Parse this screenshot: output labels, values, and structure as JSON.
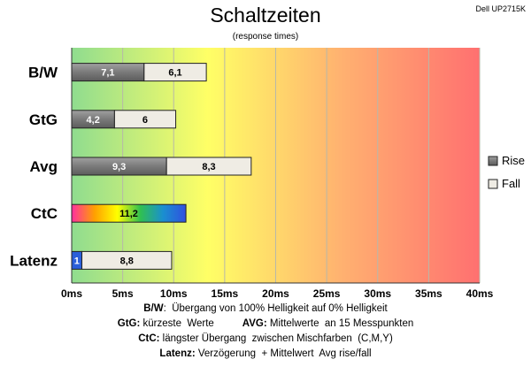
{
  "header": {
    "title": "Schaltzeiten",
    "subtitle": "(response times)",
    "monitor": "Dell UP2715K"
  },
  "chart_data": {
    "type": "bar",
    "orientation": "horizontal",
    "stacked": true,
    "categories": [
      "B/W",
      "GtG",
      "Avg",
      "CtC",
      "Latenz"
    ],
    "series": [
      {
        "name": "Rise",
        "values": [
          7.1,
          4.2,
          9.3,
          null,
          1
        ],
        "color": "#7f7f7f"
      },
      {
        "name": "Fall",
        "values": [
          6.1,
          6,
          8.3,
          null,
          8.8
        ],
        "color": "#efece4"
      }
    ],
    "single_values": {
      "CtC": 11.2
    },
    "data_labels": {
      "Rise": [
        "7,1",
        "4,2",
        "9,3",
        "",
        "1"
      ],
      "Fall": [
        "6,1",
        "6",
        "8,3",
        "",
        "8,8"
      ],
      "CtC": "11,2"
    },
    "x_ticks": [
      "0ms",
      "5ms",
      "10ms",
      "15ms",
      "20ms",
      "25ms",
      "30ms",
      "35ms",
      "40ms"
    ],
    "xlim": [
      0,
      40
    ],
    "grid": true,
    "legend_position": "right",
    "background_gradient": [
      "#8fdc8f",
      "#ffff66",
      "#ffb070",
      "#ff7070"
    ],
    "ctc_gradient": [
      "#ff2fa0",
      "#ffa000",
      "#ffff00",
      "#30c050",
      "#1a8fd0",
      "#3050e0"
    ],
    "latenz_rise_color": "#2b5fd9"
  },
  "notes": [
    {
      "parts": [
        {
          "b": "B/W",
          "t": ":  Übergang von 100% Helligkeit auf 0% Helligkeit"
        }
      ]
    },
    {
      "parts": [
        {
          "b": "GtG:",
          "t": " kürzeste  Werte          "
        },
        {
          "b": "AVG:",
          "t": " Mittelwerte  an 15 Messpunkten"
        }
      ]
    },
    {
      "parts": [
        {
          "b": "CtC:",
          "t": " längster Übergang  zwischen Mischfarben  (C,M,Y)"
        }
      ]
    },
    {
      "parts": [
        {
          "b": "Latenz:",
          "t": " Verzögerung  + Mittelwert  Avg rise/fall"
        }
      ]
    }
  ]
}
